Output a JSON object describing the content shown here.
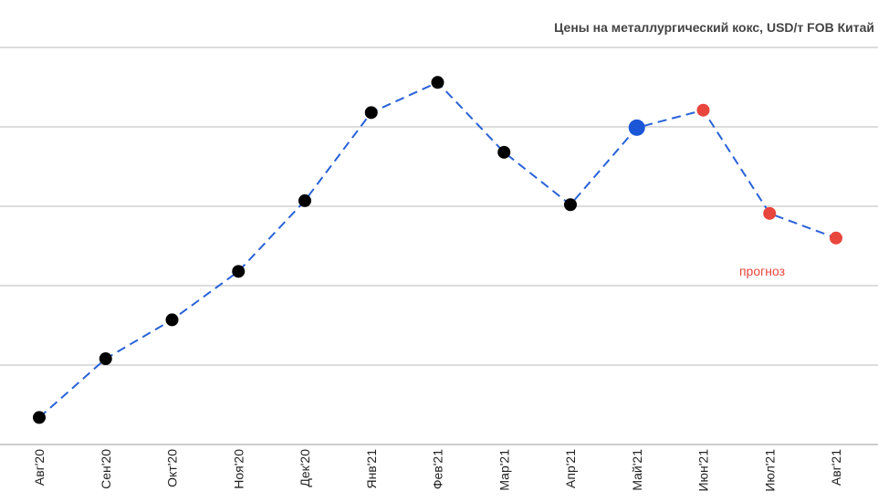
{
  "chart_data": {
    "type": "line",
    "title": "Цены на металлургический кокс, USD/т FOB Китай",
    "categories": [
      "Авг'20",
      "Сен'20",
      "Окт'20",
      "Ноя'20",
      "Дек'20",
      "Янв'21",
      "Фев'21",
      "Мар'21",
      "Апр'21",
      "Май'21",
      "Июн'21",
      "Июл'21",
      "Авг'21"
    ],
    "series": [
      {
        "name": "Цены на металлургический кокс",
        "color": "#2962d8",
        "values": [
          0.34,
          1.08,
          1.57,
          2.18,
          3.07,
          4.18,
          4.56,
          3.68,
          3.02,
          3.99,
          4.21,
          2.91,
          2.6
        ]
      }
    ],
    "point_colors": [
      "#000000",
      "#000000",
      "#000000",
      "#000000",
      "#000000",
      "#000000",
      "#000000",
      "#000000",
      "#000000",
      "#1a56d6",
      "#e8453c",
      "#e8453c",
      "#e8453c"
    ],
    "annotation": "прогноз",
    "annotation_color": "#e8453c",
    "ylim": [
      0,
      5
    ],
    "yticks": [
      0,
      1,
      2,
      3,
      4,
      5
    ],
    "grid": true
  }
}
